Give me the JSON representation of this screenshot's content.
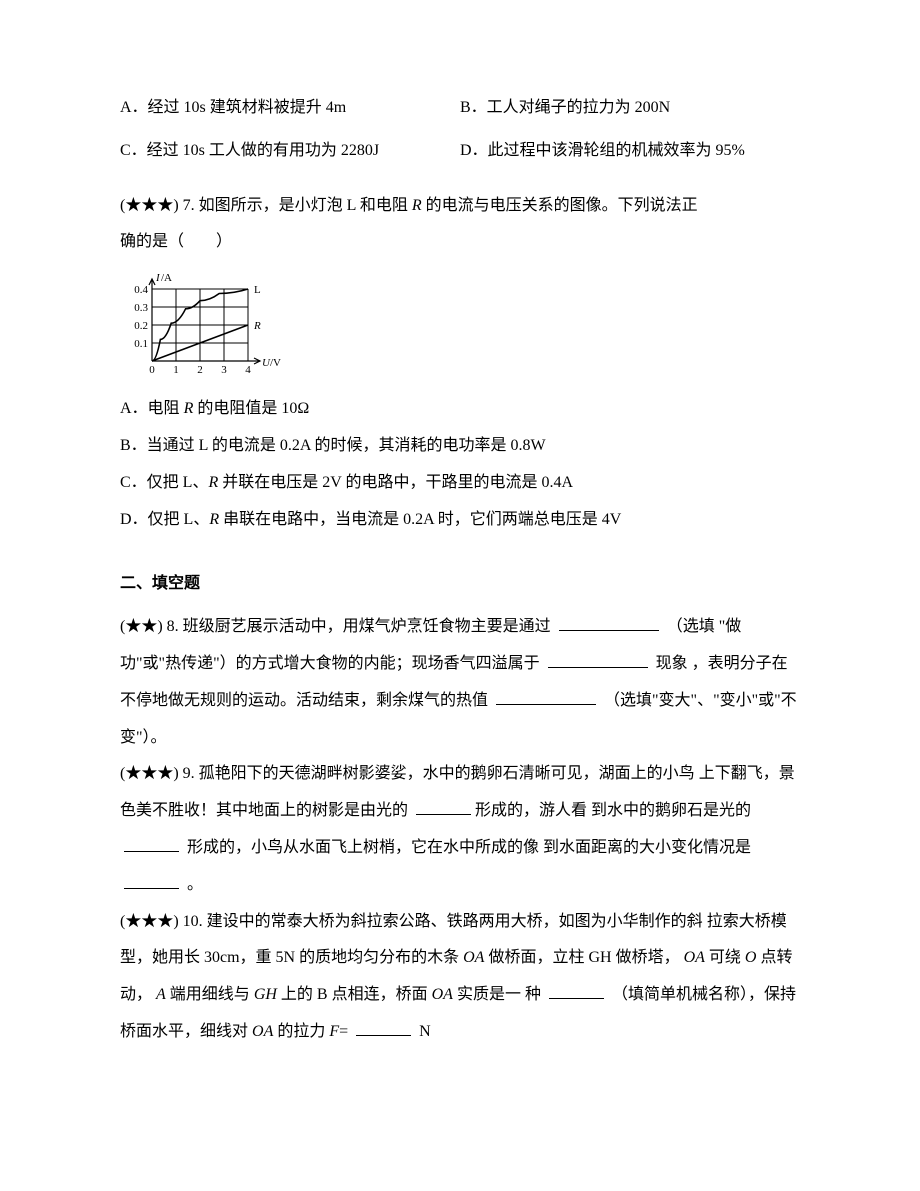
{
  "q6": {
    "optA": "A．经过 10s 建筑材料被提升 4m",
    "optB": "B．工人对绳子的拉力为 200N",
    "optC": "C．经过 10s 工人做的有用功为 2280J",
    "optD": "D．此过程中该滑轮组的机械效率为 95%"
  },
  "q7": {
    "stars": "(★★★)",
    "number": "7.",
    "stem1": "如图所示，是小灯泡 L 和电阻 ",
    "stem_R": "R",
    "stem2": " 的电流与电压关系的图像。下列说法正",
    "stem3": "确的是（　　）",
    "optA_pre": "A．电阻 ",
    "optA_R": "R",
    "optA_post": " 的电阻值是 10Ω",
    "optB": "B．当通过 L 的电流是 0.2A 的时候，其消耗的电功率是 0.8W",
    "optC_pre": "C．仅把 L、",
    "optC_R": "R",
    "optC_post": " 并联在电压是 2V 的电路中，干路里的电流是 0.4A",
    "optD_pre": "D．仅把 L、",
    "optD_R": "R",
    "optD_post": " 串联在电路中，当电流是 0.2A 时，它们两端总电压是 4V",
    "chart": {
      "type": "line",
      "y_label": "I/A",
      "x_label": "U/V",
      "x_ticks": [
        "0",
        "1",
        "2",
        "3",
        "4"
      ],
      "y_ticks": [
        "0.1",
        "0.2",
        "0.3",
        "0.4"
      ],
      "xlim": [
        0,
        4.4
      ],
      "ylim": [
        0,
        0.45
      ],
      "grid_color": "#000000",
      "axis_color": "#000000",
      "curve_L": {
        "label": "L",
        "color": "#000000",
        "points": [
          [
            0,
            0
          ],
          [
            0.35,
            0.12
          ],
          [
            0.8,
            0.21
          ],
          [
            1.4,
            0.29
          ],
          [
            2.0,
            0.335
          ],
          [
            2.8,
            0.375
          ],
          [
            4.0,
            0.4
          ]
        ]
      },
      "line_R": {
        "label": "R",
        "color": "#000000",
        "points": [
          [
            0,
            0
          ],
          [
            4,
            0.2
          ]
        ],
        "extend_to": [
          4.0,
          0.2
        ]
      },
      "label_fontsize": 11,
      "tick_fontsize": 11
    }
  },
  "section2_heading": "二、填空题",
  "q8": {
    "stars": "(★★)",
    "number": "8.",
    "t1": "班级厨艺展示活动中，用煤气炉烹饪食物主要是通过 ",
    "t2": " （选填",
    "t3": "\"做功\"或\"热传递\"）的方式增大食物的内能；现场香气四溢属于 ",
    "t4": " 现象",
    "t5": "，表明分子在不停地做无规则的运动。活动结束，剩余煤气的热值 ",
    "t6": "（选填\"变大\"、\"变小\"或\"不变\"）。"
  },
  "q9": {
    "stars": "(★★★)",
    "number": "9.",
    "t1": "孤艳阳下的天德湖畔树影婆娑，水中的鹅卵石清晰可见，湖面上的小鸟",
    "t2": "上下翻飞，景色美不胜收！其中地面上的树影是由光的 ",
    "t3": "形成的，游人看",
    "t4": "到水中的鹅卵石是光的 ",
    "t5": " 形成的，小鸟从水面飞上树梢，它在水中所成的像",
    "t6": "到水面距离的大小变化情况是 ",
    "t7": " 。"
  },
  "q10": {
    "stars": "(★★★)",
    "number": "10.",
    "t1": "建设中的常泰大桥为斜拉索公路、铁路两用大桥，如图为小华制作的斜",
    "t2": "拉索大桥模型，她用长 30cm，重 5N 的质地均匀分布的木条 ",
    "OA1": "OA",
    "t3": " 做桥面，立柱 GH",
    "t4": "做桥塔， ",
    "OA2": "OA",
    "t5": " 可绕 ",
    "O1": "O",
    "t6": " 点转动， ",
    "A1": "A",
    "t7": " 端用细线与 ",
    "GH": "GH",
    "t8": " 上的 B 点相连，桥面 ",
    "OA3": "OA",
    "t9": " 实质是一",
    "t10": "种 ",
    "t11": " （填简单机械名称），保持桥面水平，细线对 ",
    "OA4": "OA",
    "t12": " 的拉力 ",
    "F": "F",
    "eq": "= ",
    "t13": " N"
  }
}
